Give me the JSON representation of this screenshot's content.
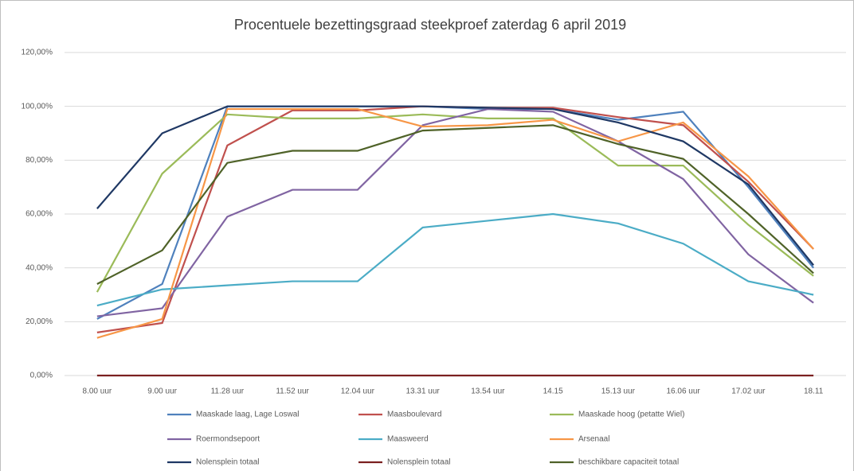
{
  "chart_data": {
    "type": "line",
    "title": "Procentuele bezettingsgraad steekproef zaterdag 6 april 2019",
    "categories": [
      "8.00 uur",
      "9.00 uur",
      "11.28 uur",
      "11.52 uur",
      "12.04 uur",
      "13.31 uur",
      "13.54 uur",
      "14.15",
      "15.13 uur",
      "16.06 uur",
      "17.02 uur",
      "18.11"
    ],
    "ylim": [
      0,
      120
    ],
    "yticks": [
      {
        "value": 0,
        "label": "0,00%"
      },
      {
        "value": 20,
        "label": "20,00%"
      },
      {
        "value": 40,
        "label": "40,00%"
      },
      {
        "value": 60,
        "label": "60,00%"
      },
      {
        "value": 80,
        "label": "80,00%"
      },
      {
        "value": 100,
        "label": "100,00%"
      },
      {
        "value": 120,
        "label": "120,00%"
      }
    ],
    "grid": true,
    "series": [
      {
        "name": "Maaskade laag, Lage Loswal",
        "color": "#4f81bd",
        "values": [
          21,
          34,
          100,
          100,
          100,
          100,
          99,
          99,
          95,
          98,
          70,
          40
        ]
      },
      {
        "name": "Maasboulevard",
        "color": "#c0504d",
        "values": [
          16,
          19.5,
          85.5,
          98.5,
          98.5,
          100,
          99.5,
          99.5,
          96,
          93,
          72,
          47
        ]
      },
      {
        "name": "Maaskade hoog (petatte Wiel)",
        "color": "#9bbb59",
        "values": [
          31,
          75,
          97,
          95.5,
          95.5,
          97,
          95.5,
          95.5,
          78,
          78,
          56,
          37
        ]
      },
      {
        "name": "Roermondsepoort",
        "color": "#8064a2",
        "values": [
          22,
          25,
          59,
          69,
          69,
          93,
          99,
          98,
          87,
          73,
          45,
          27
        ]
      },
      {
        "name": "Maasweerd",
        "color": "#4bacc6",
        "values": [
          26,
          32,
          33.5,
          35,
          35,
          55,
          57.5,
          60,
          56.5,
          49,
          35,
          30
        ]
      },
      {
        "name": "Arsenaal",
        "color": "#f79646",
        "values": [
          14,
          21,
          99,
          99,
          99,
          92.5,
          93,
          95,
          87,
          94,
          74,
          47
        ]
      },
      {
        "name": "Nolensplein totaal",
        "color": "#1f3864",
        "values": [
          62,
          90,
          100,
          100,
          100,
          100,
          99.5,
          99,
          94,
          87,
          71,
          41
        ]
      },
      {
        "name": "Nolensplein totaal",
        "color": "#7b2020",
        "values": [
          0,
          0,
          0,
          0,
          0,
          0,
          0,
          0,
          0,
          0,
          0,
          0
        ]
      },
      {
        "name": "beschikbare capaciteit totaal",
        "color": "#4f6228",
        "values": [
          34,
          46.5,
          79,
          83.5,
          83.5,
          91,
          92,
          93,
          86,
          80.5,
          60,
          38
        ]
      }
    ]
  }
}
